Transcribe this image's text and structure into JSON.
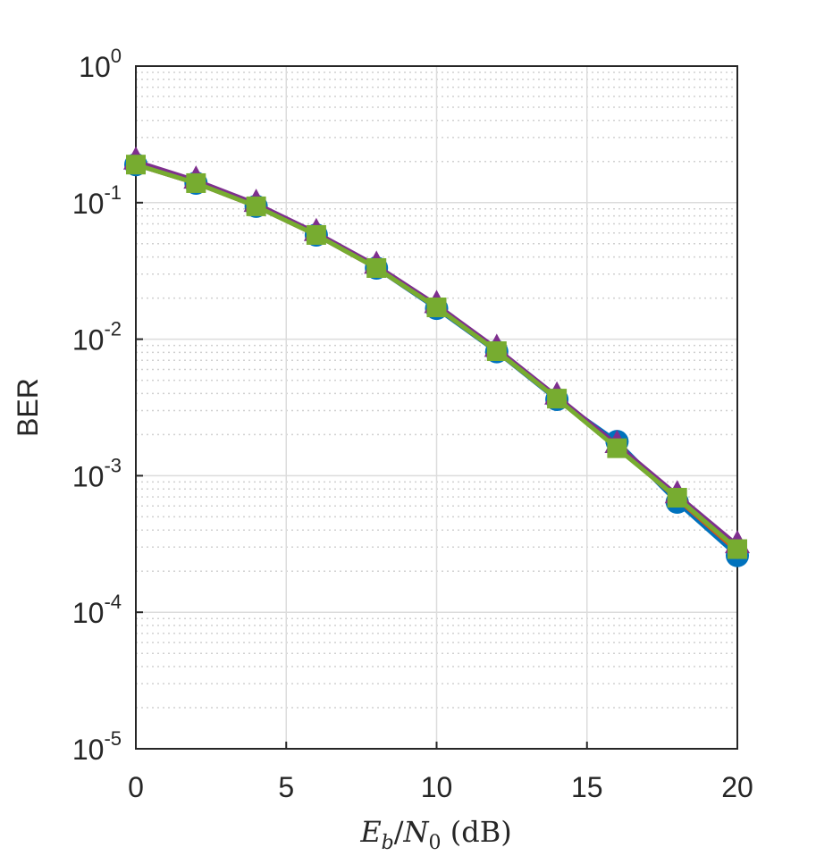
{
  "chart_data": {
    "type": "line",
    "ylabel": "BER",
    "xlabel": [
      {
        "text": "E",
        "style": "italic"
      },
      {
        "text": "b",
        "style": "sub-italic"
      },
      {
        "text": "/",
        "style": "normal"
      },
      {
        "text": "N",
        "style": "italic"
      },
      {
        "text": "0",
        "style": "sub"
      },
      {
        "text": " (dB)",
        "style": "normal"
      }
    ],
    "x": [
      0,
      2,
      4,
      6,
      8,
      10,
      12,
      14,
      16,
      18,
      20
    ],
    "series": [
      {
        "color": "#0072bd",
        "marker": "circle",
        "values": [
          0.19,
          0.139,
          0.094,
          0.058,
          0.0332,
          0.0168,
          0.0081,
          0.00362,
          0.00178,
          0.00064,
          0.00026
        ]
      },
      {
        "color": "#d95319",
        "marker": "diamond",
        "values": [
          0.19,
          0.139,
          0.094,
          0.058,
          0.0332,
          0.0171,
          0.00817,
          0.00367,
          0.00163,
          0.00068,
          0.00028
        ]
      },
      {
        "color": "#7e2f8e",
        "marker": "triangle",
        "values": [
          0.2,
          0.145,
          0.098,
          0.06,
          0.0345,
          0.0178,
          0.0085,
          0.0038,
          0.00168,
          0.00072,
          0.00031
        ]
      },
      {
        "color": "#77ac30",
        "marker": "square",
        "values": [
          0.19,
          0.139,
          0.094,
          0.058,
          0.0332,
          0.0171,
          0.00817,
          0.00367,
          0.00159,
          0.00069,
          0.00029
        ]
      }
    ],
    "xlim": [
      0,
      20
    ],
    "xticks": [
      0,
      5,
      10,
      15,
      20
    ],
    "ylim": [
      1e-05,
      1
    ],
    "log_y": true,
    "yticks": [
      {
        "value": 1,
        "base": "10",
        "exponent": "0"
      },
      {
        "value": 0.1,
        "base": "10",
        "exponent": "-1"
      },
      {
        "value": 0.01,
        "base": "10",
        "exponent": "-2"
      },
      {
        "value": 0.001,
        "base": "10",
        "exponent": "-3"
      },
      {
        "value": 0.0001,
        "base": "10",
        "exponent": "-4"
      },
      {
        "value": 1e-05,
        "base": "10",
        "exponent": "-5"
      }
    ],
    "grid": true,
    "minor_grid": true
  }
}
